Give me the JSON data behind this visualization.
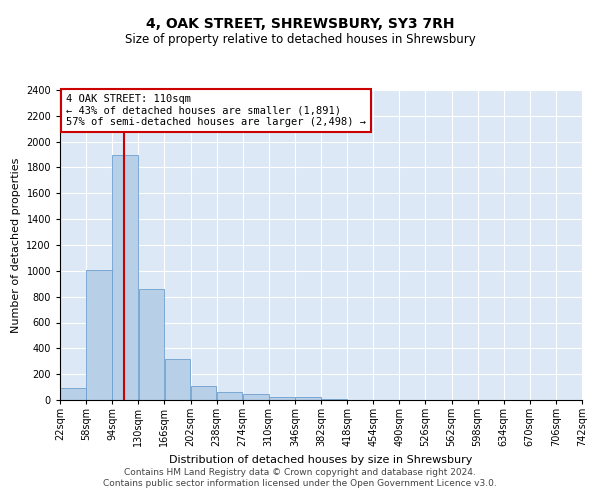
{
  "title": "4, OAK STREET, SHREWSBURY, SY3 7RH",
  "subtitle": "Size of property relative to detached houses in Shrewsbury",
  "xlabel": "Distribution of detached houses by size in Shrewsbury",
  "ylabel": "Number of detached properties",
  "bin_labels": [
    "22sqm",
    "58sqm",
    "94sqm",
    "130sqm",
    "166sqm",
    "202sqm",
    "238sqm",
    "274sqm",
    "310sqm",
    "346sqm",
    "382sqm",
    "418sqm",
    "454sqm",
    "490sqm",
    "526sqm",
    "562sqm",
    "598sqm",
    "634sqm",
    "670sqm",
    "706sqm",
    "742sqm"
  ],
  "bin_left_edges": [
    22,
    58,
    94,
    130,
    166,
    202,
    238,
    274,
    310,
    346,
    382,
    418,
    454,
    490,
    526,
    562,
    598,
    634,
    670,
    706
  ],
  "bin_width": 36,
  "bar_heights": [
    90,
    1010,
    1900,
    860,
    315,
    110,
    60,
    45,
    25,
    20,
    5,
    0,
    0,
    0,
    0,
    0,
    0,
    0,
    0,
    0
  ],
  "bar_color": "#b8cfe8",
  "bar_edge_color": "#6ca0d0",
  "vline_color": "#cc0000",
  "vline_x": 110,
  "annotation_text": "4 OAK STREET: 110sqm\n← 43% of detached houses are smaller (1,891)\n57% of semi-detached houses are larger (2,498) →",
  "annotation_box_color": "#cc0000",
  "ylim": [
    0,
    2400
  ],
  "yticks": [
    0,
    200,
    400,
    600,
    800,
    1000,
    1200,
    1400,
    1600,
    1800,
    2000,
    2200,
    2400
  ],
  "footer_text": "Contains HM Land Registry data © Crown copyright and database right 2024.\nContains public sector information licensed under the Open Government Licence v3.0.",
  "bg_color": "#dce8f5",
  "title_fontsize": 10,
  "subtitle_fontsize": 8.5,
  "ylabel_fontsize": 8,
  "xlabel_fontsize": 8,
  "tick_fontsize": 7,
  "footer_fontsize": 6.5,
  "annot_fontsize": 7.5
}
